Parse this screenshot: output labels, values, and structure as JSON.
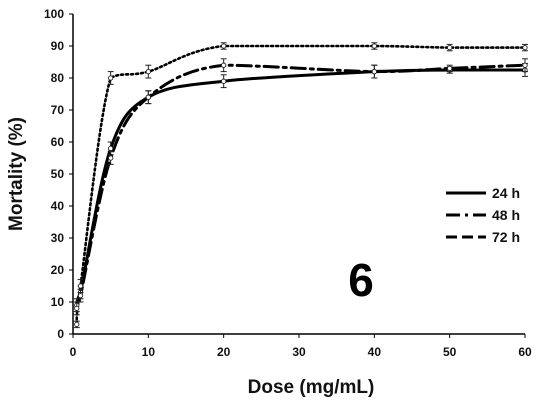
{
  "chart_data": {
    "type": "line",
    "xlabel": "Dose (mg/mL)",
    "ylabel": "Mortality  (%)",
    "annotation": "6",
    "xlim": [
      0,
      60
    ],
    "ylim": [
      0,
      100
    ],
    "xticks": [
      0,
      10,
      20,
      30,
      40,
      50,
      60
    ],
    "yticks": [
      0,
      10,
      20,
      30,
      40,
      50,
      60,
      70,
      80,
      90,
      100
    ],
    "legend_position": "right",
    "grid": false,
    "x": [
      0.5,
      1,
      5,
      10,
      20,
      40,
      50,
      60
    ],
    "series": [
      {
        "name": "24 h",
        "style": "solid",
        "color": "#000000",
        "values": [
          9,
          13,
          58,
          74,
          79,
          82,
          82.5,
          82.5
        ],
        "errors": [
          2,
          2,
          2,
          2,
          2,
          2,
          1,
          2
        ]
      },
      {
        "name": "48 h",
        "style": "dashdot",
        "color": "#000000",
        "values": [
          8,
          12,
          55,
          74,
          84,
          82,
          83,
          84
        ],
        "errors": [
          2,
          2,
          2,
          2,
          2,
          2,
          1,
          2
        ]
      },
      {
        "name": "72 h",
        "style": "dotted",
        "color": "#000000",
        "values": [
          3,
          15,
          80,
          82,
          90,
          90,
          89.5,
          89.5
        ],
        "errors": [
          1,
          2,
          2,
          2,
          1,
          1,
          1,
          1
        ]
      }
    ]
  }
}
